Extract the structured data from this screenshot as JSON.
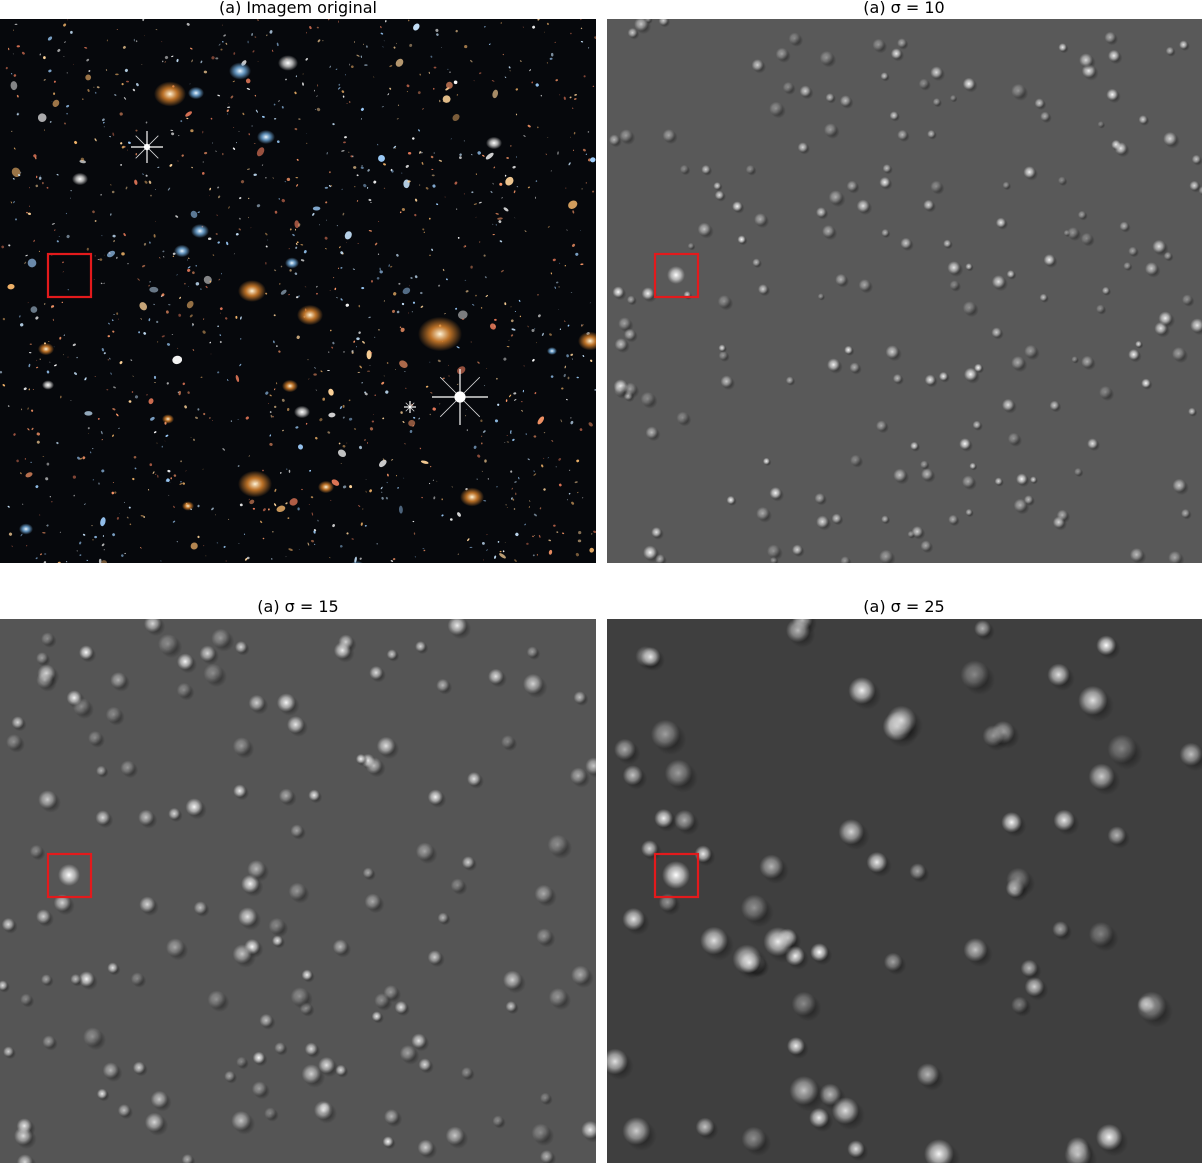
{
  "figure": {
    "panels": [
      {
        "title": "(a) Imagem original",
        "kind": "original"
      },
      {
        "title": "(a) σ = 10",
        "kind": "filtered",
        "sigma": 10
      },
      {
        "title": "(a) σ = 15",
        "kind": "filtered",
        "sigma": 15
      },
      {
        "title": "(a) σ = 25",
        "kind": "filtered",
        "sigma": 25
      }
    ],
    "highlight_color": "#e31a1c",
    "original_background": "#06080c",
    "filtered_backgrounds": [
      "#595959",
      "#555555",
      "#3f3f3f"
    ]
  }
}
